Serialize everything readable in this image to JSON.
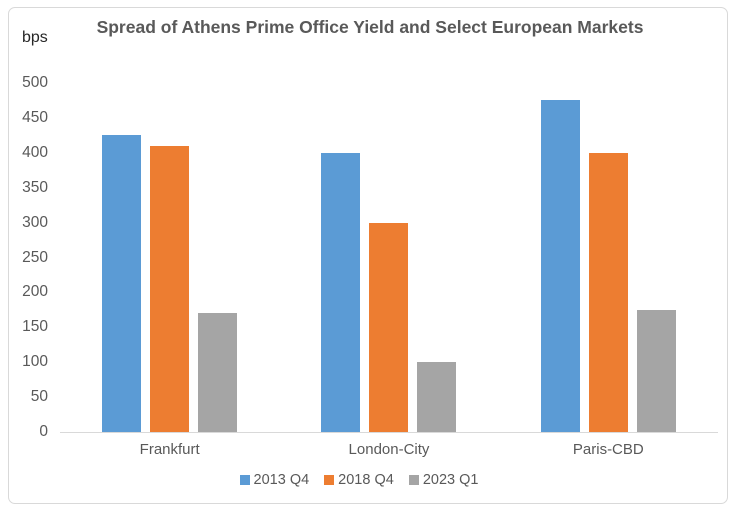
{
  "chart_data": {
    "type": "bar",
    "title": "Spread of Athens Prime Office Yield and Select European Markets",
    "ylabel": "bps",
    "xlabel": "",
    "categories": [
      "Frankfurt",
      "London-City",
      "Paris-CBD"
    ],
    "series": [
      {
        "name": "2013 Q4",
        "color": "#5B9BD5",
        "values": [
          425,
          400,
          475
        ]
      },
      {
        "name": "2018 Q4",
        "color": "#ED7D31",
        "values": [
          410,
          300,
          400
        ]
      },
      {
        "name": "2023 Q1",
        "color": "#A5A5A5",
        "values": [
          170,
          100,
          175
        ]
      }
    ],
    "ylim": [
      0,
      500
    ],
    "y_ticks": [
      0,
      50,
      100,
      150,
      200,
      250,
      300,
      350,
      400,
      450,
      500
    ],
    "grid": false,
    "legend_position": "bottom"
  },
  "colors": {
    "text": "#595959",
    "frame_border": "#D9D9D9",
    "background": "#FFFFFF"
  }
}
